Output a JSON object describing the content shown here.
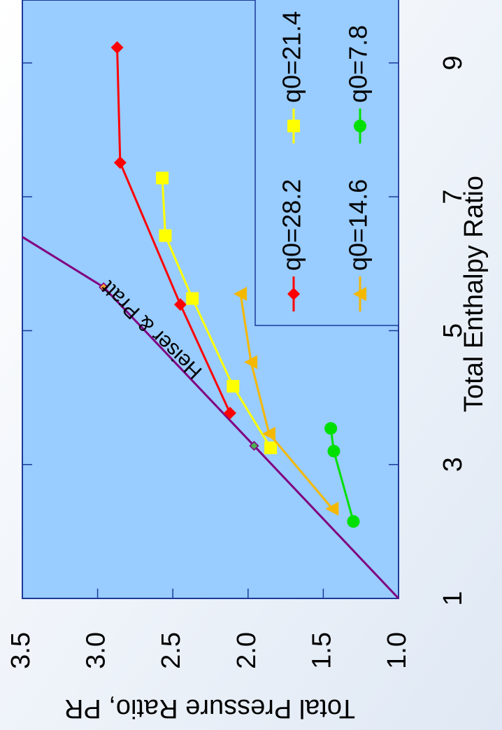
{
  "chart_data": {
    "type": "line",
    "x_label": "Total Enthalpy Ratio",
    "y_label": "Total Pressure Ratio, PR",
    "xlim": [
      1,
      9.94
    ],
    "xticks": [
      1,
      3,
      5,
      7,
      9
    ],
    "ylim": [
      1,
      3.5
    ],
    "yticks": [
      {
        "value": 1,
        "label": "1.0"
      },
      {
        "value": 1.5,
        "label": "1.5"
      },
      {
        "value": 2,
        "label": "2.0"
      },
      {
        "value": 2.5,
        "label": "2.5"
      },
      {
        "value": 3,
        "label": "3.0"
      },
      {
        "value": 3.5,
        "label": "3.5"
      }
    ],
    "series": [
      {
        "name": "q0=28.2",
        "color": "#ff0000",
        "marker": "diamond",
        "x": [
          3.77,
          5.39,
          7.51,
          9.23
        ],
        "values": [
          2.12,
          2.45,
          2.85,
          2.87
        ]
      },
      {
        "name": "q0=21.4",
        "color": "#ffff00",
        "marker": "square",
        "x": [
          3.25,
          4.17,
          5.48,
          6.42,
          7.28
        ],
        "values": [
          1.85,
          2.1,
          2.37,
          2.55,
          2.57
        ]
      },
      {
        "name": "q0=14.6",
        "color": "#f5b800",
        "marker": "triangle",
        "x": [
          2.34,
          3.46,
          4.53,
          5.55
        ],
        "values": [
          1.44,
          1.86,
          1.98,
          2.05
        ]
      },
      {
        "name": "q0=7.8",
        "color": "#00e000",
        "marker": "circle",
        "x": [
          2.15,
          3.2,
          3.54
        ],
        "values": [
          1.3,
          1.43,
          1.45
        ]
      }
    ],
    "reference_line": {
      "label": "Heiser & Pratt",
      "color": "#800080",
      "x": [
        1,
        3.28,
        5.65,
        6.4
      ],
      "values": [
        1,
        1.96,
        2.96,
        3.5
      ]
    }
  }
}
